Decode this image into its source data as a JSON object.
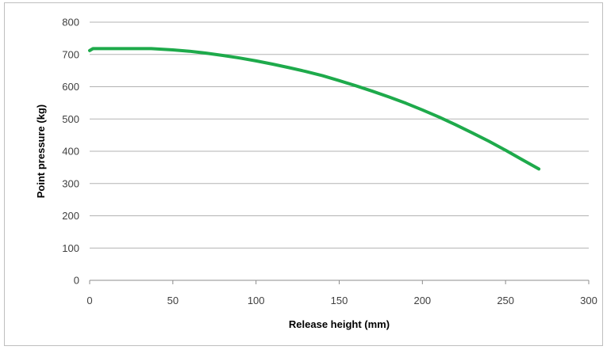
{
  "chart_data": {
    "type": "line",
    "title": "",
    "xlabel": "Release height (mm)",
    "ylabel": "Point pressure (kg)",
    "xlim": [
      0,
      300
    ],
    "ylim": [
      0,
      800
    ],
    "x_ticks": [
      "0",
      "50",
      "100",
      "150",
      "200",
      "250",
      "300"
    ],
    "y_ticks": [
      "0",
      "100",
      "200",
      "300",
      "400",
      "500",
      "600",
      "700",
      "800"
    ],
    "grid": "horizontal",
    "legend": "none",
    "series": [
      {
        "color": "#1eaa4b",
        "x": [
          0,
          2,
          10,
          20,
          30,
          37,
          50,
          60,
          70,
          80,
          90,
          100,
          110,
          120,
          130,
          140,
          150,
          160,
          170,
          180,
          190,
          200,
          210,
          220,
          230,
          240,
          250,
          260,
          270
        ],
        "y": [
          712,
          718,
          718,
          718,
          718,
          718,
          714,
          710,
          704,
          697,
          689,
          680,
          670,
          659,
          647,
          634,
          619,
          603,
          586,
          568,
          549,
          528,
          506,
          482,
          457,
          431,
          403,
          374,
          345
        ]
      }
    ]
  }
}
